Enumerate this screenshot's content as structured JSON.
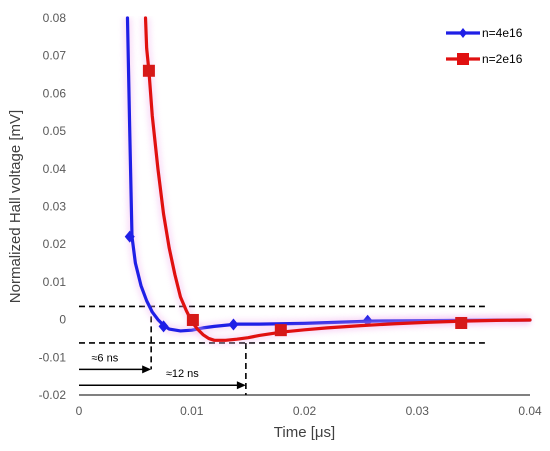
{
  "chart_data": {
    "type": "line",
    "title": "",
    "xlabel": "Time [μs]",
    "ylabel": "Normalized Hall voltage [mV]",
    "xlim": [
      0,
      0.04
    ],
    "ylim": [
      -0.02,
      0.08
    ],
    "xticks": [
      "0",
      "0.01",
      "0.02",
      "0.03",
      "0.04"
    ],
    "yticks": [
      "0.08",
      "0.07",
      "0.06",
      "0.05",
      "0.04",
      "0.03",
      "0.02",
      "0.01",
      "0",
      "-0.01",
      "-0.02"
    ],
    "grid": false,
    "legend_position": "top-right",
    "series": [
      {
        "name": "n=4e16",
        "color": "#1f1fe6",
        "marker": "diamond",
        "x": [
          0.0043,
          0.0045,
          0.0047,
          0.005,
          0.0055,
          0.006,
          0.0065,
          0.007,
          0.0075,
          0.008,
          0.009,
          0.01,
          0.011,
          0.012,
          0.013,
          0.014,
          0.016,
          0.018,
          0.02,
          0.022,
          0.026,
          0.03,
          0.034,
          0.04
        ],
        "y": [
          0.08,
          0.05,
          0.022,
          0.015,
          0.009,
          0.005,
          0.002,
          0.0,
          -0.0015,
          -0.0025,
          -0.003,
          -0.0028,
          -0.0022,
          -0.0018,
          -0.0015,
          -0.0012,
          -0.0012,
          -0.0011,
          -0.001,
          -0.0008,
          -0.0004,
          -0.0003,
          -0.0002,
          -0.0001
        ],
        "marker_x": [
          0.0045,
          0.0075,
          0.0137,
          0.0256
        ],
        "marker_y": [
          0.022,
          -0.0018,
          -0.0013,
          -0.0003
        ]
      },
      {
        "name": "n=2e16",
        "color": "#e01010",
        "marker": "square",
        "x": [
          0.0059,
          0.006,
          0.0062,
          0.0065,
          0.007,
          0.0075,
          0.008,
          0.0085,
          0.009,
          0.0095,
          0.01,
          0.0105,
          0.011,
          0.0115,
          0.012,
          0.013,
          0.014,
          0.015,
          0.016,
          0.018,
          0.02,
          0.022,
          0.025,
          0.028,
          0.031,
          0.034,
          0.037,
          0.04
        ],
        "y": [
          0.08,
          0.072,
          0.066,
          0.054,
          0.04,
          0.028,
          0.019,
          0.012,
          0.006,
          0.0025,
          -0.0005,
          -0.0025,
          -0.004,
          -0.005,
          -0.0055,
          -0.0055,
          -0.0052,
          -0.0048,
          -0.0042,
          -0.0033,
          -0.0027,
          -0.0022,
          -0.0016,
          -0.0011,
          -0.0007,
          -0.0004,
          -0.0002,
          -0.0001
        ],
        "marker_x": [
          0.0062,
          0.0101,
          0.0179,
          0.0339
        ],
        "marker_y": [
          0.066,
          -0.0001,
          -0.0028,
          -0.0009
        ]
      }
    ],
    "reference_lines": {
      "y_upper": 0.0035,
      "y_lower": -0.0062,
      "x_left_marker": 0.0064,
      "x_right_marker": 0.0148,
      "h_xmin": 0.0,
      "h_xmax": 0.036
    },
    "annotations": {
      "arrow_6ns_label": "≈6 ns",
      "arrow_6ns_y": -0.0132,
      "arrow_12ns_label": "≈12 ns",
      "arrow_12ns_y": -0.0174
    }
  }
}
